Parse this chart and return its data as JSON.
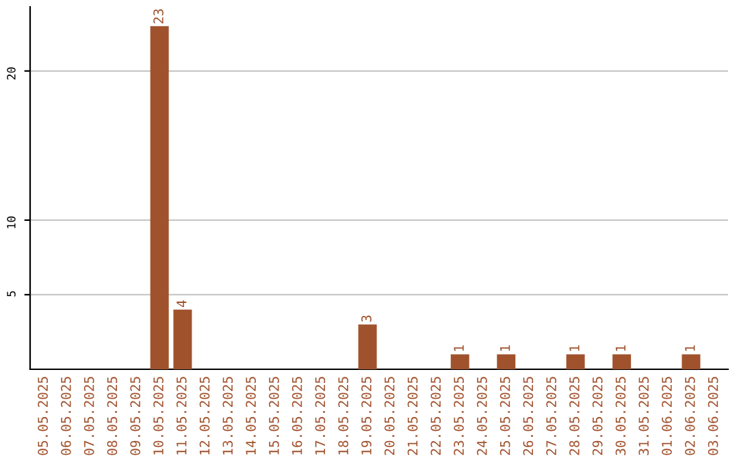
{
  "chart_data": {
    "type": "bar",
    "categories": [
      "05.05.2025",
      "06.05.2025",
      "07.05.2025",
      "08.05.2025",
      "09.05.2025",
      "10.05.2025",
      "11.05.2025",
      "12.05.2025",
      "13.05.2025",
      "14.05.2025",
      "15.05.2025",
      "16.05.2025",
      "17.05.2025",
      "18.05.2025",
      "19.05.2025",
      "20.05.2025",
      "21.05.2025",
      "22.05.2025",
      "23.05.2025",
      "24.05.2025",
      "25.05.2025",
      "26.05.2025",
      "27.05.2025",
      "28.05.2025",
      "29.05.2025",
      "30.05.2025",
      "31.05.2025",
      "01.06.2025",
      "02.06.2025",
      "03.06.2025"
    ],
    "values": [
      0,
      0,
      0,
      0,
      0,
      23,
      4,
      0,
      0,
      0,
      0,
      0,
      0,
      0,
      3,
      0,
      0,
      0,
      1,
      0,
      1,
      0,
      0,
      1,
      0,
      1,
      0,
      0,
      1,
      0
    ],
    "value_labels": [
      null,
      null,
      null,
      null,
      null,
      "23",
      "4",
      null,
      null,
      null,
      null,
      null,
      null,
      null,
      "3",
      null,
      null,
      null,
      "1",
      null,
      "1",
      null,
      null,
      "1",
      null,
      "1",
      null,
      null,
      "1",
      null
    ],
    "color": "#a0522d",
    "ylim": [
      0,
      24.3
    ],
    "yticks": [
      5,
      10,
      20
    ],
    "grid": "y"
  }
}
